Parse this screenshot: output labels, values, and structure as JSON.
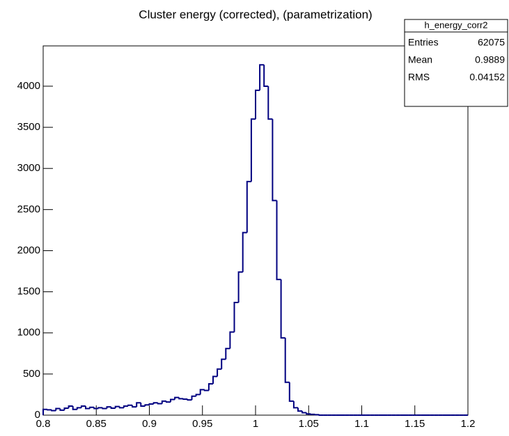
{
  "chart_data": {
    "type": "histogram",
    "title": "Cluster energy (corrected), (parametrization)",
    "color": "#000080",
    "bins": [
      0.8,
      0.804,
      0.808,
      0.812,
      0.816,
      0.82,
      0.824,
      0.828,
      0.832,
      0.836,
      0.84,
      0.844,
      0.848,
      0.852,
      0.856,
      0.86,
      0.864,
      0.868,
      0.872,
      0.876,
      0.88,
      0.884,
      0.888,
      0.892,
      0.896,
      0.9,
      0.904,
      0.908,
      0.912,
      0.916,
      0.92,
      0.924,
      0.928,
      0.932,
      0.936,
      0.94,
      0.944,
      0.948,
      0.952,
      0.956,
      0.96,
      0.964,
      0.968,
      0.972,
      0.976,
      0.98,
      0.984,
      0.988,
      0.992,
      0.996,
      1,
      1.004,
      1.008,
      1.012,
      1.016,
      1.02,
      1.024,
      1.028,
      1.032,
      1.036,
      1.04,
      1.044,
      1.048,
      1.052,
      1.056,
      1.06,
      1.064,
      1.068,
      1.072,
      1.076,
      1.08,
      1.084,
      1.088,
      1.092,
      1.096,
      1.1,
      1.104,
      1.108,
      1.112,
      1.116,
      1.12,
      1.124,
      1.128,
      1.132,
      1.136,
      1.14,
      1.144,
      1.148,
      1.152,
      1.156,
      1.16,
      1.164,
      1.168,
      1.172,
      1.176,
      1.18,
      1.184,
      1.188,
      1.192,
      1.196,
      1.2
    ],
    "values": [
      70,
      65,
      55,
      80,
      60,
      85,
      110,
      70,
      90,
      110,
      80,
      95,
      80,
      90,
      80,
      100,
      85,
      105,
      90,
      110,
      120,
      100,
      150,
      110,
      125,
      135,
      150,
      140,
      170,
      160,
      190,
      215,
      200,
      195,
      185,
      230,
      250,
      310,
      300,
      380,
      470,
      560,
      680,
      810,
      1010,
      1370,
      1740,
      2220,
      2840,
      3600,
      3950,
      4260,
      4000,
      3600,
      2610,
      1650,
      940,
      400,
      170,
      90,
      50,
      30,
      15,
      10,
      5,
      0,
      0,
      0,
      0,
      0,
      0,
      0,
      0,
      0,
      0,
      0,
      0,
      0,
      0,
      0,
      0,
      0,
      0,
      0,
      0,
      0,
      0,
      0,
      0,
      0,
      0,
      0,
      0,
      0,
      0,
      0,
      0,
      0,
      0,
      0
    ],
    "xlim": [
      0.8,
      1.2
    ],
    "xticks": [
      0.8,
      0.85,
      0.9,
      0.95,
      1,
      1.05,
      1.1,
      1.15,
      1.2
    ],
    "ylim": [
      0,
      4490
    ],
    "yticks": [
      0,
      500,
      1000,
      1500,
      2000,
      2500,
      3000,
      3500,
      4000
    ],
    "stats": {
      "name": "h_energy_corr2",
      "rows": [
        {
          "label": "Entries",
          "value": 62075
        },
        {
          "label": "Mean",
          "value": 0.9889
        },
        {
          "label": "RMS",
          "value": 0.04152
        }
      ]
    }
  }
}
